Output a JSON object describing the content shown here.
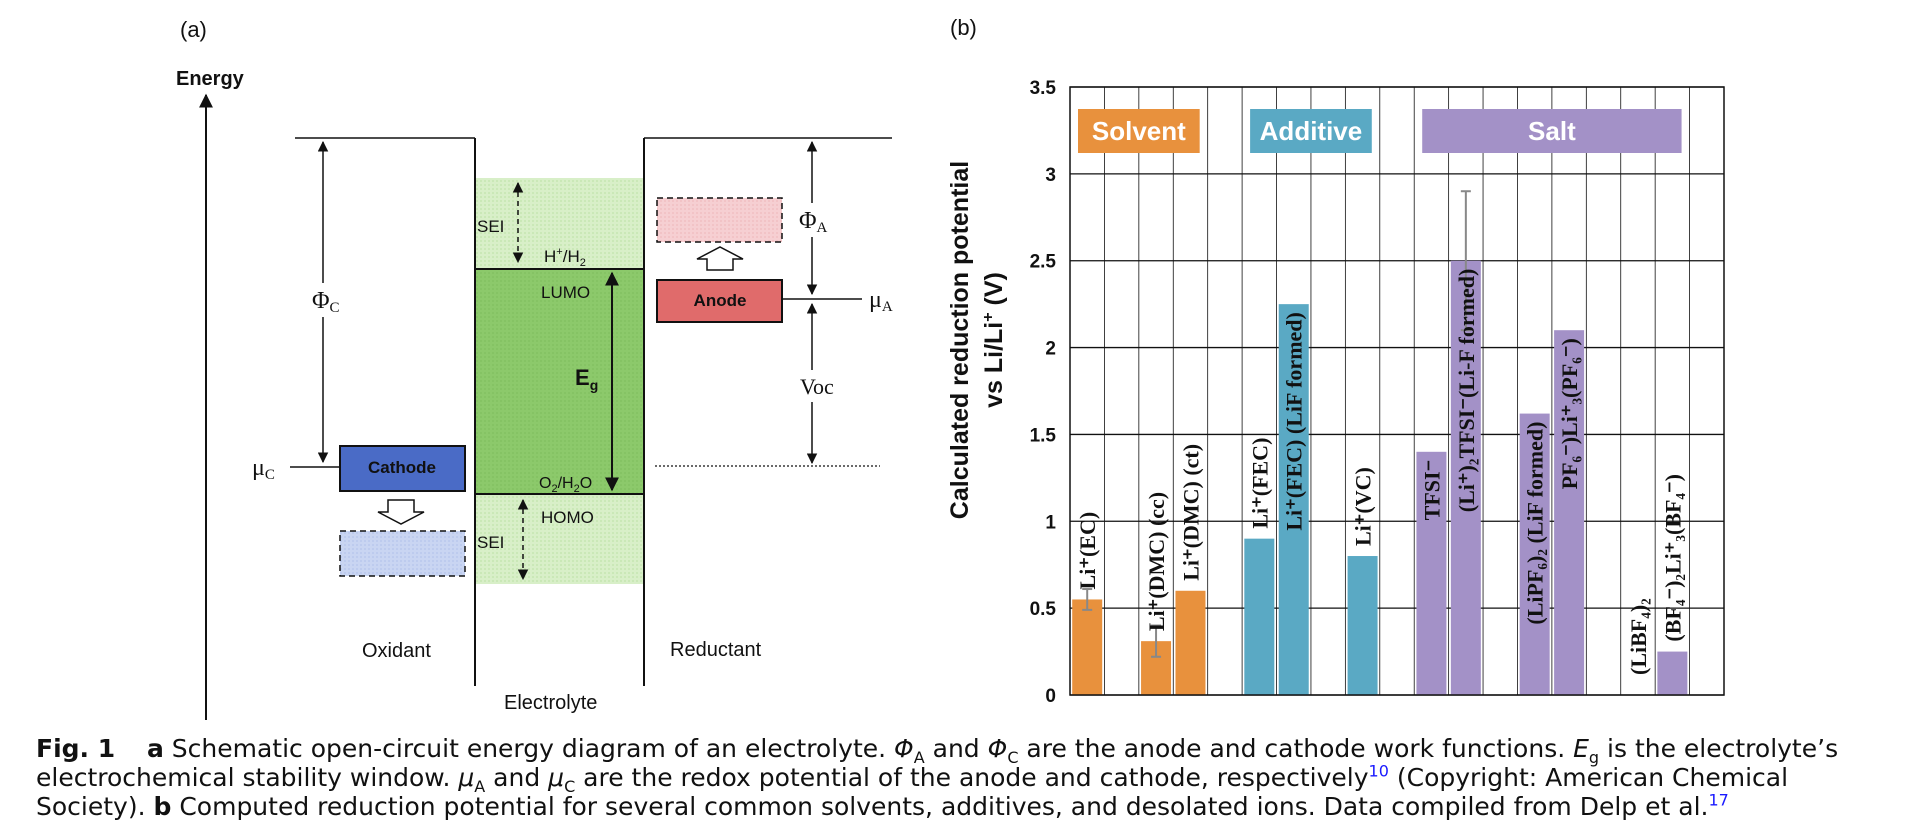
{
  "panel_a": {
    "label": "(a)",
    "energy_label": "Energy",
    "phi_c": "Φ",
    "phi_c_sub": "C",
    "phi_a": "Φ",
    "phi_a_sub": "A",
    "mu_c": "μ",
    "mu_c_sub": "C",
    "mu_a": "μ",
    "mu_a_sub": "A",
    "voc": "Voc",
    "sei_top": "SEI",
    "sei_bottom": "SEI",
    "h_couple": "H",
    "h_couple_sup": "+",
    "h_couple_rest": "/H",
    "h_couple_sub": "2",
    "lumo": "LUMO",
    "homo": "HOMO",
    "o2_a": "O",
    "o2_sub": "2",
    "o2_b": "/H",
    "o2_sub2": "2",
    "o2_c": "O",
    "eg": "E",
    "eg_sub": "g",
    "cathode": "Cathode",
    "anode": "Anode",
    "oxidant": "Oxidant",
    "electrolyte": "Electrolyte",
    "reductant": "Reductant",
    "colors": {
      "electrolyte_green": "#8cc96b",
      "sei_green": "#d8efc8",
      "cathode_blue": "#4a6bc6",
      "cathode_light": "#c9d5f2",
      "anode_red": "#e06b6b",
      "anode_light": "#f6cfd2"
    }
  },
  "panel_b": {
    "label": "(b)",
    "groups": [
      {
        "label": "Solvent",
        "color": "#e8913d"
      },
      {
        "label": "Additive",
        "color": "#5aa9c4"
      },
      {
        "label": "Salt",
        "color": "#a391c7"
      }
    ]
  },
  "chart_data": {
    "type": "bar",
    "ylabel_line1": "Calculated reduction potential",
    "ylabel_line2": "vs Li/Li",
    "ylabel_sup": "+",
    "ylabel_unit": " (V)",
    "ylim": [
      0,
      3.5
    ],
    "yticks": [
      "0",
      "0.5",
      "1",
      "1.5",
      "2",
      "2.5",
      "3",
      "3.5"
    ],
    "ytick_values": [
      0,
      0.5,
      1,
      1.5,
      2,
      2.5,
      3,
      3.5
    ],
    "grid": true,
    "slots": 19,
    "bars": [
      {
        "slot": 0,
        "value": 0.55,
        "error": 0.06,
        "group": 0,
        "label": "Li⁺(EC)"
      },
      {
        "slot": 2,
        "value": 0.31,
        "error": 0.09,
        "group": 0,
        "label": "Li⁺(DMC) (cc)"
      },
      {
        "slot": 3,
        "value": 0.6,
        "group": 0,
        "label": "Li⁺(DMC) (ct)"
      },
      {
        "slot": 5,
        "value": 0.9,
        "group": 1,
        "label": "Li⁺(FEC)"
      },
      {
        "slot": 6,
        "value": 2.25,
        "group": 1,
        "label": "Li⁺(FEC) (LiF formed)"
      },
      {
        "slot": 8,
        "value": 0.8,
        "group": 1,
        "label": "Li⁺(VC)"
      },
      {
        "slot": 10,
        "value": 1.4,
        "group": 2,
        "label": "TFSI⁻"
      },
      {
        "slot": 11,
        "value": 2.5,
        "error": 0.4,
        "group": 2,
        "label": "(Li⁺)₂TFSI⁻(Li-F formed)"
      },
      {
        "slot": 13,
        "value": 1.62,
        "group": 2,
        "label": "(LiPF₆)₂ (LiF formed)"
      },
      {
        "slot": 14,
        "value": 2.1,
        "group": 2,
        "label": "PF₆⁻)Li⁺₃(PF₆⁻)"
      },
      {
        "slot": 16,
        "value": 0.0,
        "group": 2,
        "label": "(LiBF₄)₂"
      },
      {
        "slot": 17,
        "value": 0.25,
        "group": 2,
        "label": "(BF₄⁻)₂Li⁺₃(BF₄⁻)"
      }
    ]
  },
  "caption": {
    "fig": "Fig. 1",
    "a": "a",
    "t1": " Schematic open-circuit energy diagram of an electrolyte. ",
    "phiA": "Φ",
    "subA": "A",
    "t2": " and ",
    "phiC": "Φ",
    "subC": "C",
    "t3": " are the anode and cathode work functions. ",
    "eg": "E",
    "egsub": "g",
    "t4": " is the electrolyte’s electrochemical stability window. ",
    "muA": "μ",
    "muAsub": "A",
    "t5": " and ",
    "muC": "μ",
    "muCsub": "C",
    "t6": " are the redox potential of the anode and cathode, respectively",
    "ref1": "10",
    "t7": " (Copyright: American Chemical Society). ",
    "b": "b",
    "t8": " Computed reduction potential for several common solvents, additives, and desolated ions. Data compiled from Delp et al.",
    "ref2": "17"
  }
}
